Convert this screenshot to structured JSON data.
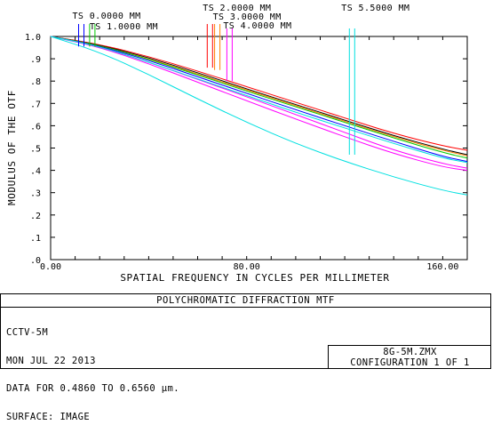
{
  "chart_data": {
    "type": "line",
    "title": "POLYCHROMATIC DIFFRACTION MTF",
    "xlabel": "SPATIAL FREQUENCY IN CYCLES PER MILLIMETER",
    "ylabel": "MODULUS OF THE OTF",
    "xlim": [
      0,
      170
    ],
    "ylim": [
      0,
      1
    ],
    "x_ticks": [
      "0.00",
      "80.00",
      "160.00"
    ],
    "x_tick_values": [
      0,
      80,
      160
    ],
    "y_ticks": [
      "1.0",
      ".9",
      ".8",
      ".7",
      ".6",
      ".5",
      ".4",
      ".3",
      ".2",
      ".1",
      ".0"
    ],
    "y_tick_values": [
      1.0,
      0.9,
      0.8,
      0.7,
      0.6,
      0.5,
      0.4,
      0.3,
      0.2,
      0.1,
      0.0
    ],
    "field_labels": [
      {
        "text": "TS 0.0000 MM",
        "color": "#0000ff",
        "x": 12.5
      },
      {
        "text": "TS 1.0000 MM",
        "color": "#00cc00",
        "x": 17
      },
      {
        "text": "TS 2.0000 MM",
        "color": "#ff0000",
        "x": 65
      },
      {
        "text": "TS 3.0000 MM",
        "color": "#ff7f00",
        "x": 68
      },
      {
        "text": "TS 4.0000 MM",
        "color": "#ff00ff",
        "x": 73
      },
      {
        "text": "TS 5.5000 MM",
        "color": "#00e0e0",
        "x": 123
      }
    ],
    "series": [
      {
        "color": "#ff0000",
        "x": [
          0,
          20,
          40,
          60,
          80,
          100,
          120,
          140,
          160,
          170
        ],
        "values": [
          1.0,
          0.965,
          0.91,
          0.845,
          0.775,
          0.705,
          0.635,
          0.565,
          0.51,
          0.49
        ]
      },
      {
        "color": "#000000",
        "x": [
          0,
          20,
          40,
          60,
          80,
          100,
          120,
          140,
          160,
          170
        ],
        "values": [
          1.0,
          0.962,
          0.905,
          0.838,
          0.765,
          0.695,
          0.625,
          0.555,
          0.495,
          0.47
        ]
      },
      {
        "color": "#ff7f00",
        "x": [
          0,
          20,
          40,
          60,
          80,
          100,
          120,
          140,
          160,
          170
        ],
        "values": [
          1.0,
          0.96,
          0.9,
          0.832,
          0.76,
          0.69,
          0.62,
          0.55,
          0.49,
          0.465
        ]
      },
      {
        "color": "#00cc00",
        "x": [
          0,
          20,
          40,
          60,
          80,
          100,
          120,
          140,
          160,
          170
        ],
        "values": [
          1.0,
          0.96,
          0.898,
          0.828,
          0.755,
          0.685,
          0.615,
          0.545,
          0.48,
          0.455
        ]
      },
      {
        "color": "#0000ff",
        "x": [
          0,
          20,
          40,
          60,
          80,
          100,
          120,
          140,
          160,
          170
        ],
        "values": [
          1.0,
          0.957,
          0.893,
          0.82,
          0.745,
          0.672,
          0.6,
          0.53,
          0.462,
          0.44
        ]
      },
      {
        "color": "#ff00ff",
        "x": [
          0,
          20,
          40,
          60,
          80,
          100,
          120,
          140,
          160,
          170
        ],
        "values": [
          1.0,
          0.955,
          0.885,
          0.808,
          0.73,
          0.65,
          0.57,
          0.49,
          0.43,
          0.41
        ]
      },
      {
        "color": "#ff00ff",
        "x": [
          0,
          20,
          40,
          60,
          80,
          100,
          120,
          140,
          160,
          170
        ],
        "values": [
          1.0,
          0.952,
          0.878,
          0.795,
          0.712,
          0.63,
          0.55,
          0.475,
          0.415,
          0.4
        ]
      },
      {
        "color": "#00e0e0",
        "x": [
          0,
          20,
          40,
          60,
          80,
          100,
          120,
          140,
          160,
          170
        ],
        "values": [
          1.0,
          0.955,
          0.885,
          0.81,
          0.735,
          0.66,
          0.59,
          0.52,
          0.455,
          0.435
        ]
      },
      {
        "color": "#00e0e0",
        "x": [
          0,
          20,
          40,
          60,
          80,
          100,
          120,
          140,
          160,
          170
        ],
        "values": [
          1.0,
          0.93,
          0.83,
          0.72,
          0.615,
          0.52,
          0.44,
          0.37,
          0.31,
          0.29
        ]
      }
    ]
  },
  "footer": {
    "title": "POLYCHROMATIC DIFFRACTION MTF",
    "lines": [
      "CCTV-5M",
      "MON JUL 22 2013",
      "DATA FOR 0.4860 TO 0.6560 µm.",
      "SURFACE: IMAGE"
    ],
    "file": "8G-5M.ZMX",
    "config": "CONFIGURATION 1 OF 1"
  }
}
